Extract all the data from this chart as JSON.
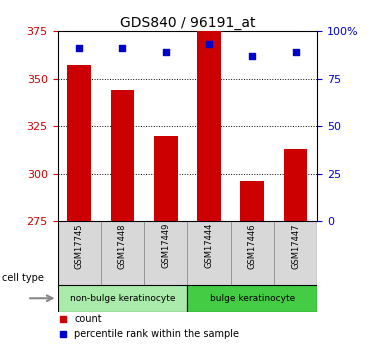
{
  "title": "GDS840 / 96191_at",
  "samples": [
    "GSM17745",
    "GSM17448",
    "GSM17449",
    "GSM17444",
    "GSM17446",
    "GSM17447"
  ],
  "counts": [
    357,
    344,
    320,
    375,
    296,
    313
  ],
  "percentiles": [
    91,
    91,
    89,
    93,
    87,
    89
  ],
  "ymin": 275,
  "ymax": 375,
  "yticks_left": [
    275,
    300,
    325,
    350,
    375
  ],
  "yticks_right": [
    0,
    25,
    50,
    75,
    100
  ],
  "groups": [
    {
      "label": "non-bulge keratinocyte",
      "start": 0,
      "end": 3,
      "color": "#aaeaaa"
    },
    {
      "label": "bulge keratinocyte",
      "start": 3,
      "end": 6,
      "color": "#44cc44"
    }
  ],
  "bar_color": "#cc0000",
  "dot_color": "#0000cc",
  "bar_width": 0.55,
  "grid_color": "#000000",
  "title_fontsize": 10,
  "tick_fontsize": 8,
  "legend_fontsize": 7,
  "left_tick_color": "#cc0000",
  "right_tick_color": "#0000cc",
  "background_color": "#ffffff"
}
